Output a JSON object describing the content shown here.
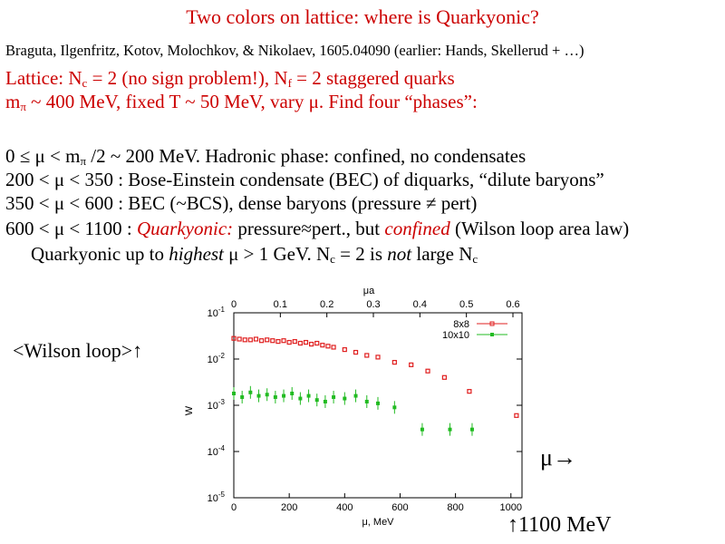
{
  "slide": {
    "title": "Two colors on lattice: where is Quarkyonic?",
    "authors": "Braguta, Ilgenfritz, Kotov, Molochkov, & Nikolaev, 1605.04090 (earlier: Hands, Skellerud + …)",
    "line1": {
      "a": "Lattice: N",
      "sub1": "c",
      "b": " = 2 (no sign problem!), N",
      "sub2": "f",
      "c": " = 2 staggered quarks"
    },
    "line2": {
      "a": "m",
      "sub": "π",
      "b": " ~ 400 MeV, fixed T ~ 50 MeV, vary μ.  Find four “phases”:"
    },
    "line3": {
      "a": "0 ≤ μ < m",
      "sub": "π",
      "b": " /2 ~ 200 MeV.  Hadronic phase: confined, no condensates"
    },
    "line4": "200 < μ < 350 : Bose-Einstein condensate (BEC) of diquarks, “dilute baryons”",
    "line5": "350 < μ < 600 : BEC (~BCS), dense baryons (pressure ≠ pert)",
    "line6": {
      "a": "600 < μ < 1100 : ",
      "italic1": "Quarkyonic:",
      "b": " pressure≈pert., but ",
      "italic2": "confined",
      "c": " (Wilson loop area law)"
    },
    "line7": {
      "a": "Quarkyonic up to ",
      "italic1": "highest",
      "b": " μ > 1 GeV.  N",
      "sub1": "c",
      "c": " = 2 is ",
      "italic2": "not",
      "d": " large N",
      "sub2": "c"
    },
    "label_wilson": "<Wilson loop>↑",
    "label_mu": "μ→",
    "label_1100": "↑1100 MeV"
  },
  "colors": {
    "text": "#000000",
    "red": "#cc0000",
    "series1": "#e02020",
    "series2": "#22bb22"
  },
  "chart_data": {
    "type": "scatter",
    "xlabel": "μ, MeV",
    "ylabel": "W",
    "x2label": "μa",
    "x_ticks": [
      "0",
      "200",
      "400",
      "600",
      "800",
      "1000"
    ],
    "x2_ticks": [
      "0",
      "0.1",
      "0.2",
      "0.3",
      "0.4",
      "0.5",
      "0.6"
    ],
    "y_ticks": [
      "10-1",
      "10-2",
      "10-3",
      "10-4",
      "10-5"
    ],
    "xlim": [
      0,
      1040
    ],
    "ylim_log10": [
      -5,
      -1
    ],
    "log_y": true,
    "legend_position": "top-right",
    "series": [
      {
        "name": "8x8",
        "marker": "open-square",
        "x": [
          0,
          20,
          40,
          60,
          80,
          100,
          120,
          140,
          160,
          180,
          200,
          220,
          240,
          260,
          280,
          300,
          320,
          340,
          360,
          400,
          440,
          480,
          520,
          580,
          640,
          700,
          760,
          850,
          1020
        ],
        "y": [
          0.028,
          0.027,
          0.026,
          0.026,
          0.027,
          0.025,
          0.026,
          0.025,
          0.024,
          0.025,
          0.023,
          0.024,
          0.022,
          0.023,
          0.021,
          0.022,
          0.02,
          0.019,
          0.018,
          0.016,
          0.014,
          0.012,
          0.011,
          0.0085,
          0.0075,
          0.0055,
          0.004,
          0.002,
          0.0006
        ]
      },
      {
        "name": "10x10",
        "marker": "filled-square",
        "x": [
          0,
          30,
          60,
          90,
          120,
          150,
          180,
          210,
          240,
          270,
          300,
          330,
          360,
          400,
          440,
          480,
          520,
          580,
          680,
          780,
          860
        ],
        "y": [
          0.0018,
          0.0015,
          0.0019,
          0.0016,
          0.0017,
          0.0015,
          0.0016,
          0.0018,
          0.0014,
          0.0016,
          0.0013,
          0.0012,
          0.0015,
          0.0014,
          0.0016,
          0.0012,
          0.0011,
          0.0009,
          0.0003,
          0.0003,
          0.0003
        ]
      }
    ]
  }
}
